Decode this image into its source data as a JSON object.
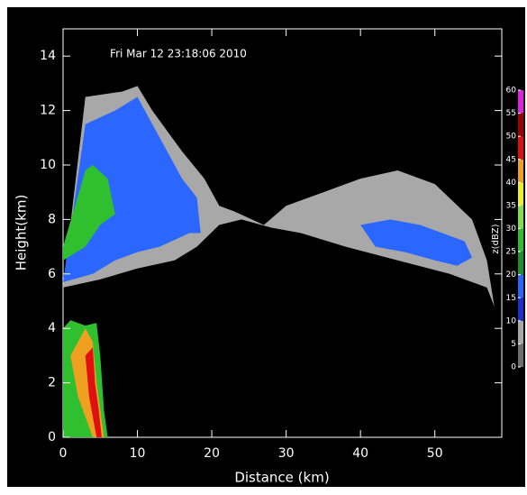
{
  "chart_data": {
    "type": "rhi",
    "title": "Fri Mar 12 23:18:06 2010",
    "x_label": "Distance (km)",
    "y_label": "Height(km)",
    "xlim": [
      0,
      59
    ],
    "ylim": [
      0,
      15
    ],
    "xticks": [
      0,
      10,
      20,
      30,
      40,
      50
    ],
    "yticks": [
      0,
      2,
      4,
      6,
      8,
      10,
      12,
      14
    ],
    "colorbar": {
      "label": "z(dBZ)",
      "ticks": [
        0,
        5,
        10,
        15,
        20,
        25,
        30,
        35,
        40,
        45,
        50,
        55,
        60
      ],
      "colors": [
        "#6e6e6e",
        "#a8a8a8",
        "#1c2fd0",
        "#2b66ff",
        "#1f8f2c",
        "#2fbf2f",
        "#7fe04a",
        "#f0f020",
        "#f0a020",
        "#e01010",
        "#a00000",
        "#e020e0"
      ]
    },
    "regions": [
      {
        "dbz": 5,
        "x": [
          0,
          3,
          8,
          10,
          12,
          16,
          19,
          21,
          23,
          27,
          30,
          35,
          40,
          45,
          50,
          55,
          57,
          58,
          57,
          52,
          45,
          38,
          32,
          28,
          24,
          21,
          18,
          15,
          10,
          5
        ],
        "y": [
          5.5,
          12.5,
          12.7,
          12.9,
          12,
          10.5,
          9.5,
          8.5,
          8.3,
          7.8,
          8.5,
          9,
          9.5,
          9.8,
          9.3,
          8,
          6.5,
          4.8,
          5.5,
          6,
          6.5,
          7,
          7.5,
          7.7,
          8,
          7.8,
          7,
          6.5,
          6.2,
          5.8
        ]
      },
      {
        "dbz": 15,
        "x": [
          0,
          3,
          7,
          10,
          13,
          16,
          18,
          18.5,
          17,
          13,
          10,
          7,
          4
        ],
        "y": [
          5.7,
          11.5,
          12,
          12.5,
          11,
          9.5,
          8.8,
          7.5,
          7.5,
          7,
          6.8,
          6.5,
          6
        ]
      },
      {
        "dbz": 15,
        "x": [
          40,
          44,
          48,
          52,
          54,
          55,
          53,
          50,
          46,
          42
        ],
        "y": [
          7.8,
          8,
          7.8,
          7.4,
          7.2,
          6.6,
          6.3,
          6.5,
          6.8,
          7
        ]
      },
      {
        "dbz": 25,
        "x": [
          0,
          3,
          4,
          6,
          7,
          5,
          3,
          0
        ],
        "y": [
          7,
          9.8,
          10,
          9.5,
          8.2,
          7.8,
          7,
          6.5
        ]
      },
      {
        "dbz": 25,
        "x": [
          0,
          0,
          1,
          3,
          4.5,
          5,
          5.5,
          6
        ],
        "y": [
          0,
          4,
          4.3,
          4.1,
          4.2,
          3,
          1,
          0
        ]
      },
      {
        "dbz": 40,
        "x": [
          1,
          3,
          4,
          4.5,
          5,
          5.5,
          4,
          2
        ],
        "y": [
          3,
          4,
          3.5,
          2,
          1,
          0,
          0,
          1.5
        ]
      },
      {
        "dbz": 48,
        "x": [
          3,
          4,
          4.3,
          4.8,
          5.2,
          4.5,
          3.5
        ],
        "y": [
          3,
          3.3,
          2,
          1,
          0,
          0,
          1.5
        ]
      }
    ]
  }
}
